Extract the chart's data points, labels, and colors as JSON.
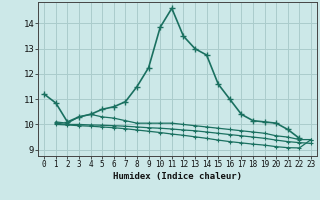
{
  "xlabel": "Humidex (Indice chaleur)",
  "ylabel": "",
  "xlim": [
    -0.5,
    23.5
  ],
  "ylim": [
    8.75,
    14.85
  ],
  "yticks": [
    9,
    10,
    11,
    12,
    13,
    14
  ],
  "xticks": [
    0,
    1,
    2,
    3,
    4,
    5,
    6,
    7,
    8,
    9,
    10,
    11,
    12,
    13,
    14,
    15,
    16,
    17,
    18,
    19,
    20,
    21,
    22,
    23
  ],
  "background_color": "#cce8e8",
  "grid_color": "#aacccc",
  "line_color": "#1a7060",
  "lines": [
    {
      "x": [
        0,
        1,
        2,
        3,
        4,
        5,
        6,
        7,
        8,
        9,
        10,
        11,
        12,
        13,
        14,
        15,
        16,
        17,
        18,
        19,
        20,
        21,
        22
      ],
      "y": [
        11.2,
        10.85,
        10.1,
        10.3,
        10.4,
        10.6,
        10.7,
        10.9,
        11.5,
        12.25,
        13.85,
        14.6,
        13.5,
        13.0,
        12.75,
        11.6,
        11.0,
        10.4,
        10.15,
        10.1,
        10.05,
        9.8,
        9.45
      ]
    },
    {
      "x": [
        1,
        2,
        3,
        4,
        5,
        6,
        7,
        8,
        9,
        10,
        11,
        12,
        13,
        14,
        15,
        16,
        17,
        18,
        19,
        20,
        21,
        22,
        23
      ],
      "y": [
        10.1,
        10.05,
        10.3,
        10.4,
        10.3,
        10.25,
        10.15,
        10.05,
        10.05,
        10.05,
        10.05,
        10.0,
        9.95,
        9.9,
        9.85,
        9.8,
        9.75,
        9.7,
        9.65,
        9.55,
        9.5,
        9.4,
        9.4
      ]
    },
    {
      "x": [
        1,
        2,
        3,
        4,
        5,
        6,
        7,
        8,
        9,
        10,
        11,
        12,
        13,
        14,
        15,
        16,
        17,
        18,
        19,
        20,
        21,
        22,
        23
      ],
      "y": [
        10.05,
        10.0,
        10.0,
        9.98,
        9.97,
        9.95,
        9.93,
        9.9,
        9.87,
        9.85,
        9.82,
        9.78,
        9.75,
        9.7,
        9.65,
        9.6,
        9.55,
        9.5,
        9.45,
        9.38,
        9.32,
        9.28,
        9.25
      ]
    },
    {
      "x": [
        1,
        2,
        3,
        4,
        5,
        6,
        7,
        8,
        9,
        10,
        11,
        12,
        13,
        14,
        15,
        16,
        17,
        18,
        19,
        20,
        21,
        22,
        23
      ],
      "y": [
        10.0,
        9.98,
        9.95,
        9.93,
        9.9,
        9.87,
        9.83,
        9.78,
        9.73,
        9.68,
        9.62,
        9.57,
        9.51,
        9.45,
        9.38,
        9.32,
        9.27,
        9.22,
        9.18,
        9.12,
        9.08,
        9.07,
        9.4
      ]
    }
  ]
}
